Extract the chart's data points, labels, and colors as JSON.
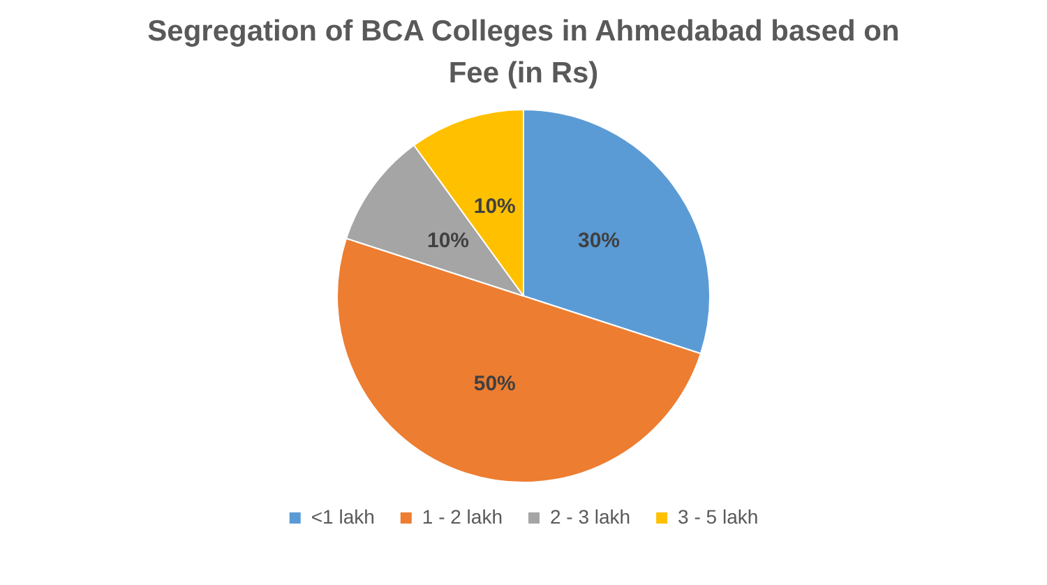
{
  "chart_data": {
    "type": "pie",
    "title": "Segregation of BCA Colleges in Ahmedabad based on Fee (in Rs)",
    "categories": [
      "<1 lakh",
      "1 - 2 lakh",
      "2 - 3 lakh",
      "3 - 5 lakh"
    ],
    "values": [
      30,
      50,
      10,
      10
    ],
    "colors": [
      "#5b9bd5",
      "#ed7d31",
      "#a5a5a5",
      "#ffc000"
    ],
    "value_labels": [
      "30%",
      "50%",
      "10%",
      "10%"
    ],
    "legend": "bottom"
  }
}
